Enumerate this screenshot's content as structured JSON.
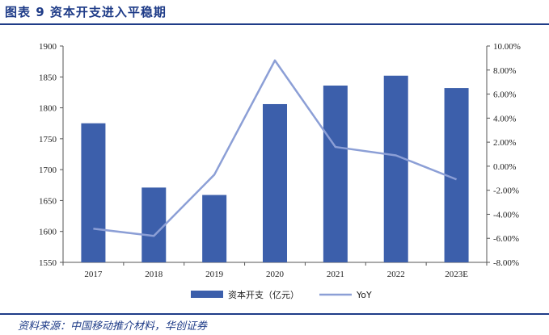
{
  "header": {
    "title": "图表 9   资本开支进入平稳期"
  },
  "footer": {
    "source": "资料来源：中国移动推介材料，华创证券"
  },
  "chart_data": {
    "type": "bar",
    "title": "",
    "categories": [
      "2017",
      "2018",
      "2019",
      "2020",
      "2021",
      "2022",
      "2023E"
    ],
    "series": [
      {
        "name": "资本开支（亿元）",
        "type": "bar",
        "axis": "left",
        "values": [
          1775,
          1671,
          1659,
          1806,
          1836,
          1852,
          1832
        ]
      },
      {
        "name": "YoY",
        "type": "line",
        "axis": "right",
        "values": [
          -5.2,
          -5.8,
          -0.7,
          8.8,
          1.6,
          0.9,
          -1.1
        ]
      }
    ],
    "ylim_left": [
      1550,
      1900
    ],
    "yticks_left": [
      "1550",
      "1600",
      "1650",
      "1700",
      "1750",
      "1800",
      "1850",
      "1900"
    ],
    "ylim_right": [
      -8,
      10
    ],
    "yticks_right": [
      "-8.00%",
      "-6.00%",
      "-4.00%",
      "-2.00%",
      "0.00%",
      "2.00%",
      "4.00%",
      "6.00%",
      "8.00%",
      "10.00%"
    ],
    "legend_position": "bottom-center",
    "colors": {
      "bar": "#3c5fab",
      "line": "#8c9fd6",
      "accent": "#1f3c88"
    }
  }
}
